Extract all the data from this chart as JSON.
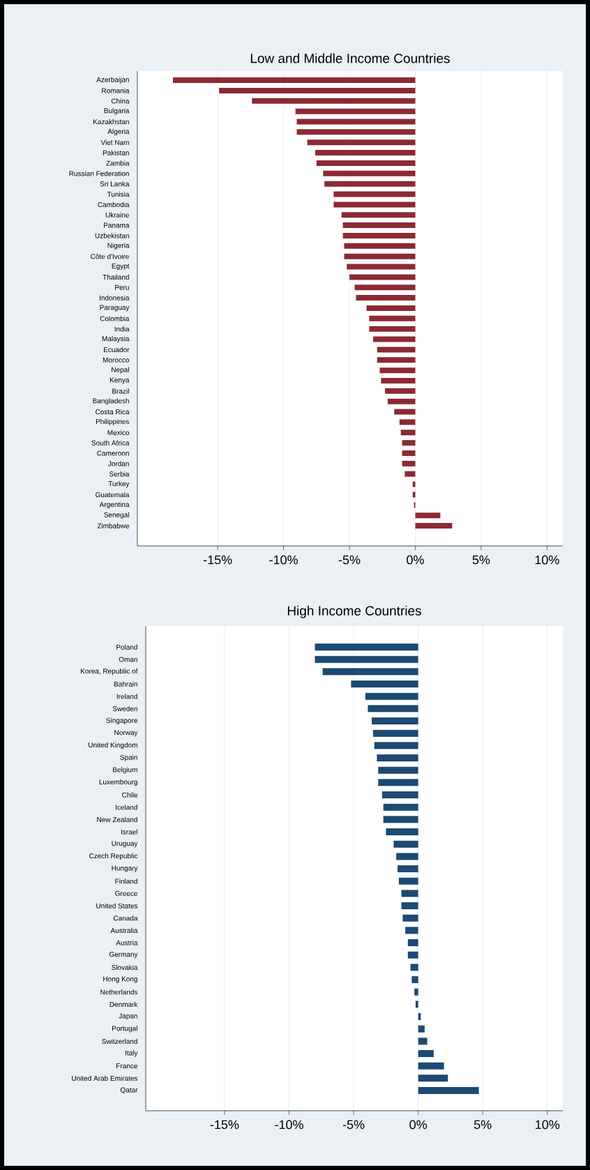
{
  "chart_data": [
    {
      "type": "bar",
      "orientation": "horizontal",
      "title": "Low and Middle Income Countries",
      "color": "#8b2a35",
      "grid": "x",
      "xlim": [
        -21.1,
        11.2
      ],
      "xticks": [
        {
          "value": -15,
          "label": "-15%"
        },
        {
          "value": -10,
          "label": "-10%"
        },
        {
          "value": -5,
          "label": "-5%"
        },
        {
          "value": 0,
          "label": "0%"
        },
        {
          "value": 5,
          "label": "5%"
        },
        {
          "value": 10,
          "label": "10%"
        }
      ],
      "categories": [
        "Azerbaijan",
        "Romania",
        "China",
        "Bulgaria",
        "Kazakhstan",
        "Algeria",
        "Viet Nam",
        "Pakistan",
        "Zambia",
        "Russian Federation",
        "Sri Lanka",
        "Tunisia",
        "Cambodia",
        "Ukraine",
        "Panama",
        "Uzbekistan",
        "Nigeria",
        "Côte d'Ivoire",
        "Egypt",
        "Thailand",
        "Peru",
        "Indonesia",
        "Paraguay",
        "Colombia",
        "India",
        "Malaysia",
        "Ecuador",
        "Morocco",
        "Nepal",
        "Kenya",
        "Brazil",
        "Bangladesh",
        "Costa Rica",
        "Philippines",
        "Mexico",
        "South Africa",
        "Cameroon",
        "Jordan",
        "Serbia",
        "Turkey",
        "Guatemala",
        "Argentina",
        "Senegal",
        "Zimbabwe"
      ],
      "values": [
        -18.4,
        -14.9,
        -12.4,
        -9.1,
        -9.0,
        -9.0,
        -8.2,
        -7.6,
        -7.5,
        -7.0,
        -6.9,
        -6.2,
        -6.2,
        -5.6,
        -5.5,
        -5.5,
        -5.4,
        -5.4,
        -5.2,
        -5.0,
        -4.6,
        -4.5,
        -3.7,
        -3.5,
        -3.5,
        -3.2,
        -2.9,
        -2.9,
        -2.7,
        -2.6,
        -2.3,
        -2.1,
        -1.6,
        -1.2,
        -1.1,
        -1.0,
        -1.0,
        -1.0,
        -0.8,
        -0.2,
        -0.2,
        -0.1,
        1.9,
        2.8
      ]
    },
    {
      "type": "bar",
      "orientation": "horizontal",
      "title": "High Income Countries",
      "color": "#1d4a73",
      "grid": "x",
      "xlim": [
        -21.1,
        11.2
      ],
      "xticks": [
        {
          "value": -15,
          "label": "-15%"
        },
        {
          "value": -10,
          "label": "-10%"
        },
        {
          "value": -5,
          "label": "-5%"
        },
        {
          "value": 0,
          "label": "0%"
        },
        {
          "value": 5,
          "label": "5%"
        },
        {
          "value": 10,
          "label": "10%"
        }
      ],
      "categories": [
        "Poland",
        "Oman",
        "Korea, Republic of",
        "Bahrain",
        "Ireland",
        "Sweden",
        "Singapore",
        "Norway",
        "United Kingdom",
        "Spain",
        "Belgium",
        "Luxembourg",
        "Chile",
        "Iceland",
        "New Zealand",
        "Israel",
        "Uruguay",
        "Czech Republic",
        "Hungary",
        "Finland",
        "Greece",
        "United States",
        "Canada",
        "Australia",
        "Austria",
        "Germany",
        "Slovakia",
        "Hong Kong",
        "Netherlands",
        "Denmark",
        "Japan",
        "Portugal",
        "Switzerland",
        "Italy",
        "France",
        "United Arab Emirates",
        "Qatar"
      ],
      "values": [
        -8.0,
        -8.0,
        -7.4,
        -5.2,
        -4.1,
        -3.9,
        -3.6,
        -3.5,
        -3.4,
        -3.2,
        -3.1,
        -3.1,
        -2.8,
        -2.7,
        -2.7,
        -2.5,
        -1.9,
        -1.7,
        -1.6,
        -1.5,
        -1.3,
        -1.3,
        -1.2,
        -1.0,
        -0.8,
        -0.8,
        -0.6,
        -0.5,
        -0.3,
        -0.2,
        0.2,
        0.5,
        0.7,
        1.2,
        2.0,
        2.3,
        4.7
      ]
    }
  ]
}
